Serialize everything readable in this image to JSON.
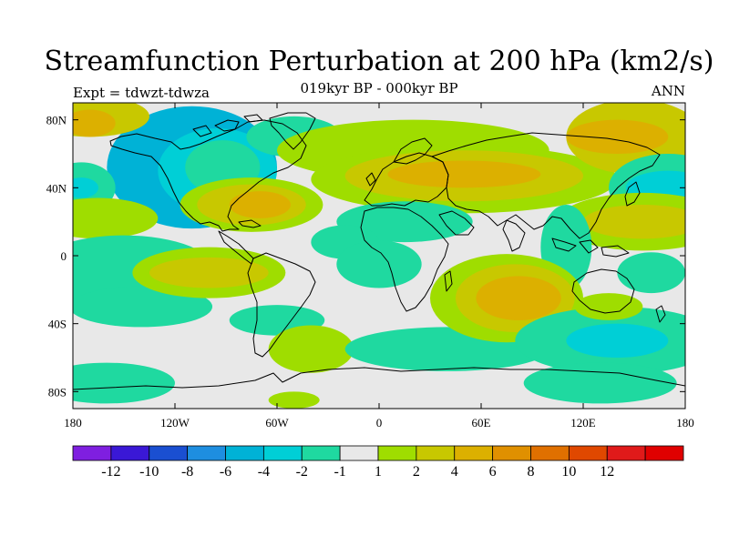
{
  "figure": {
    "title": "Streamfunction Perturbation at 200 hPa (km2/s)",
    "subtitle": "019kyr BP - 000kyr BP",
    "left_label": "Expt = tdwzt-tdwza",
    "right_label": "ANN"
  },
  "chart_data": {
    "type": "heatmap",
    "projection": "cylindrical-equidistant",
    "title": "Streamfunction Perturbation at 200 hPa (km2/s)",
    "xlim": [
      -180,
      180
    ],
    "ylim": [
      -90,
      90
    ],
    "x_ticks": [
      {
        "value": -180,
        "label": "180"
      },
      {
        "value": -120,
        "label": "120W"
      },
      {
        "value": -60,
        "label": "60W"
      },
      {
        "value": 0,
        "label": "0"
      },
      {
        "value": 60,
        "label": "60E"
      },
      {
        "value": 120,
        "label": "120E"
      },
      {
        "value": 180,
        "label": "180"
      }
    ],
    "y_ticks": [
      {
        "value": 80,
        "label": "80N"
      },
      {
        "value": 40,
        "label": "40N"
      },
      {
        "value": 0,
        "label": "0"
      },
      {
        "value": -40,
        "label": "40S"
      },
      {
        "value": -80,
        "label": "80S"
      }
    ],
    "colorbar": {
      "colors": [
        "#7f1fe0",
        "#3a18d6",
        "#1a4fd1",
        "#1e8ee0",
        "#00b2d6",
        "#00cfd6",
        "#1fd9a0",
        "#e8e8e8",
        "#9fdd00",
        "#c8c800",
        "#dcb000",
        "#e09000",
        "#e07000",
        "#e04800",
        "#e01a1a",
        "#e00000"
      ],
      "levels": [
        -12,
        -10,
        -8,
        -6,
        -4,
        -2,
        -1,
        1,
        2,
        4,
        6,
        8,
        10,
        12
      ],
      "tick_labels": [
        "-12",
        "-10",
        "-8",
        "-6",
        "-4",
        "-2",
        "-1",
        "1",
        "2",
        "4",
        "6",
        "8",
        "10",
        "12"
      ]
    },
    "background_color": "#e8e8e8",
    "anomalies": [
      {
        "lon": -110,
        "lat": 52,
        "rlon": 50,
        "rlat": 36,
        "level": 4
      },
      {
        "lon": -95,
        "lat": 50,
        "rlon": 35,
        "rlat": 25,
        "level": 5
      },
      {
        "lon": -92,
        "lat": 52,
        "rlon": 22,
        "rlat": 16,
        "level": 6
      },
      {
        "lon": -170,
        "lat": 82,
        "rlon": 35,
        "rlat": 12,
        "level": 9
      },
      {
        "lon": -170,
        "lat": 78,
        "rlon": 15,
        "rlat": 8,
        "level": 10
      },
      {
        "lon": -50,
        "lat": 70,
        "rlon": 28,
        "rlat": 12,
        "level": 6
      },
      {
        "lon": -75,
        "lat": 30,
        "rlon": 42,
        "rlat": 16,
        "level": 8
      },
      {
        "lon": -75,
        "lat": 30,
        "rlon": 32,
        "rlat": 12,
        "level": 9
      },
      {
        "lon": -70,
        "lat": 30,
        "rlon": 18,
        "rlat": 8,
        "level": 10
      },
      {
        "lon": 20,
        "lat": 62,
        "rlon": 80,
        "rlat": 18,
        "level": 8
      },
      {
        "lon": 50,
        "lat": 45,
        "rlon": 90,
        "rlat": 20,
        "level": 8
      },
      {
        "lon": 50,
        "lat": 47,
        "rlon": 70,
        "rlat": 15,
        "level": 9
      },
      {
        "lon": 50,
        "lat": 48,
        "rlon": 45,
        "rlat": 8,
        "level": 10
      },
      {
        "lon": 150,
        "lat": 70,
        "rlon": 40,
        "rlat": 22,
        "level": 9
      },
      {
        "lon": 140,
        "lat": 70,
        "rlon": 30,
        "rlat": 10,
        "level": 10
      },
      {
        "lon": 170,
        "lat": 40,
        "rlon": 35,
        "rlat": 20,
        "level": 6
      },
      {
        "lon": 170,
        "lat": 40,
        "rlon": 25,
        "rlat": 10,
        "level": 5
      },
      {
        "lon": -175,
        "lat": 40,
        "rlon": 20,
        "rlat": 15,
        "level": 6
      },
      {
        "lon": -175,
        "lat": 40,
        "rlon": 10,
        "rlat": 6,
        "level": 5
      },
      {
        "lon": 155,
        "lat": 20,
        "rlon": 50,
        "rlat": 17,
        "level": 8
      },
      {
        "lon": 155,
        "lat": 20,
        "rlon": 35,
        "rlat": 10,
        "level": 9
      },
      {
        "lon": -165,
        "lat": 22,
        "rlon": 35,
        "rlat": 12,
        "level": 8
      },
      {
        "lon": 15,
        "lat": 20,
        "rlon": 40,
        "rlat": 12,
        "level": 6
      },
      {
        "lon": -20,
        "lat": 8,
        "rlon": 20,
        "rlat": 10,
        "level": 6
      },
      {
        "lon": 110,
        "lat": 5,
        "rlon": 15,
        "rlat": 25,
        "level": 6
      },
      {
        "lon": -150,
        "lat": -10,
        "rlon": 55,
        "rlat": 22,
        "level": 6
      },
      {
        "lon": -140,
        "lat": -30,
        "rlon": 42,
        "rlat": 12,
        "level": 6
      },
      {
        "lon": -100,
        "lat": -10,
        "rlon": 45,
        "rlat": 15,
        "level": 8
      },
      {
        "lon": -100,
        "lat": -10,
        "rlon": 35,
        "rlat": 9,
        "level": 9
      },
      {
        "lon": -60,
        "lat": -38,
        "rlon": 28,
        "rlat": 9,
        "level": 6
      },
      {
        "lon": -40,
        "lat": -55,
        "rlon": 25,
        "rlat": 14,
        "level": 8
      },
      {
        "lon": 0,
        "lat": -5,
        "rlon": 25,
        "rlat": 14,
        "level": 6
      },
      {
        "lon": 40,
        "lat": -55,
        "rlon": 60,
        "rlat": 13,
        "level": 6
      },
      {
        "lon": 75,
        "lat": -25,
        "rlon": 45,
        "rlat": 26,
        "level": 8
      },
      {
        "lon": 80,
        "lat": -25,
        "rlon": 35,
        "rlat": 20,
        "level": 9
      },
      {
        "lon": 82,
        "lat": -25,
        "rlon": 25,
        "rlat": 13,
        "level": 10
      },
      {
        "lon": 140,
        "lat": -50,
        "rlon": 60,
        "rlat": 20,
        "level": 6
      },
      {
        "lon": 140,
        "lat": -50,
        "rlon": 30,
        "rlat": 10,
        "level": 5
      },
      {
        "lon": 135,
        "lat": -30,
        "rlon": 20,
        "rlat": 8,
        "level": 8
      },
      {
        "lon": 160,
        "lat": -10,
        "rlon": 20,
        "rlat": 12,
        "level": 6
      },
      {
        "lon": -160,
        "lat": -75,
        "rlon": 40,
        "rlat": 12,
        "level": 6
      },
      {
        "lon": -50,
        "lat": -85,
        "rlon": 15,
        "rlat": 5,
        "level": 8
      },
      {
        "lon": 130,
        "lat": -75,
        "rlon": 45,
        "rlat": 12,
        "level": 6
      }
    ]
  }
}
